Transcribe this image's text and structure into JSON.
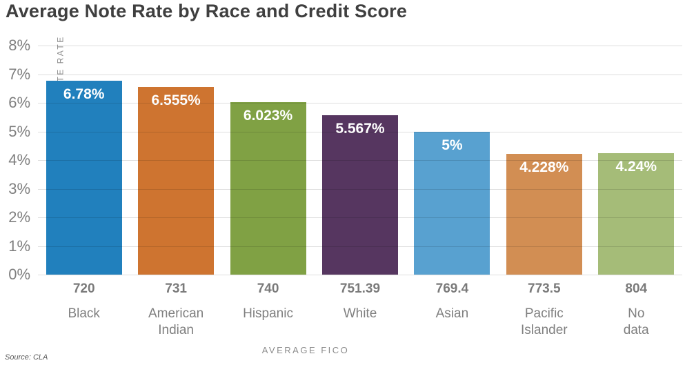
{
  "title": "Average Note Rate by Race and Credit Score",
  "source": "Source: CLA",
  "chart_data": {
    "type": "bar",
    "title": "Average Note Rate by Race and Credit Score",
    "xlabel": "AVERAGE FICO",
    "ylabel": "AVERAGE NOTE RATE",
    "categories": [
      "Black",
      "American Indian",
      "Hispanic",
      "White",
      "Asian",
      "Pacific Islander",
      "No data"
    ],
    "category_lines": [
      [
        "Black"
      ],
      [
        "American",
        "Indian"
      ],
      [
        "Hispanic"
      ],
      [
        "White"
      ],
      [
        "Asian"
      ],
      [
        "Pacific",
        "Islander"
      ],
      [
        "No",
        "data"
      ]
    ],
    "avg_fico": [
      "720",
      "731",
      "740",
      "751.39",
      "769.4",
      "773.5",
      "804"
    ],
    "values": [
      6.78,
      6.555,
      6.023,
      5.567,
      5,
      4.228,
      4.24
    ],
    "value_labels": [
      "6.78%",
      "6.555%",
      "6.023%",
      "5.567%",
      "5%",
      "4.228%",
      "4.24%"
    ],
    "bar_colors": [
      "#2180bd",
      "#ce7430",
      "#80a144",
      "#563660",
      "#58a1d0",
      "#d28e53",
      "#a5bc78"
    ],
    "ylim": [
      0,
      8
    ],
    "ytick_labels": [
      "8%",
      "7%",
      "6%",
      "5%",
      "4%",
      "3%",
      "2%",
      "1%",
      "0%"
    ],
    "grid": true,
    "legend": false,
    "source_note": "Source: CLA"
  }
}
